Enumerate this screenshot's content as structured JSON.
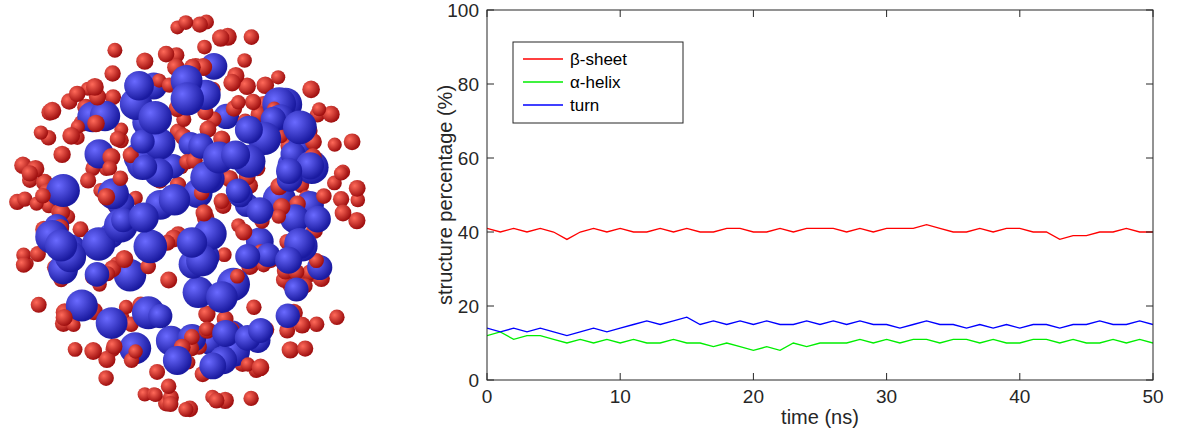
{
  "chart_data": {
    "type": "line",
    "x_label": "time (ns)",
    "y_label": "structure percentage (%)",
    "xlim": [
      0,
      50
    ],
    "xticks": [
      0,
      10,
      20,
      30,
      40,
      50
    ],
    "ylim": [
      0,
      100
    ],
    "yticks": [
      0,
      20,
      40,
      60,
      80,
      100
    ],
    "grid": false,
    "legend": "upper left",
    "x": [
      0,
      1,
      2,
      3,
      4,
      5,
      6,
      7,
      8,
      9,
      10,
      11,
      12,
      13,
      14,
      15,
      16,
      17,
      18,
      19,
      20,
      21,
      22,
      23,
      24,
      25,
      26,
      27,
      28,
      29,
      30,
      31,
      32,
      33,
      34,
      35,
      36,
      37,
      38,
      39,
      40,
      41,
      42,
      43,
      44,
      45,
      46,
      47,
      48,
      49,
      50
    ],
    "series": [
      {
        "name": "β-sheet",
        "color": "#ff0000",
        "values": [
          41,
          40,
          41,
          40,
          41,
          40,
          38,
          40,
          41,
          40,
          41,
          40,
          40,
          41,
          40,
          41,
          40,
          40,
          41,
          41,
          40,
          40,
          41,
          40,
          41,
          41,
          41,
          40,
          41,
          40,
          41,
          41,
          41,
          42,
          41,
          40,
          40,
          41,
          40,
          41,
          41,
          40,
          40,
          38,
          39,
          39,
          40,
          40,
          41,
          40,
          40
        ]
      },
      {
        "name": "α-helix",
        "color": "#00ee00",
        "values": [
          12,
          13,
          11,
          12,
          12,
          11,
          10,
          11,
          10,
          11,
          10,
          11,
          10,
          10,
          11,
          10,
          10,
          9,
          10,
          9,
          8,
          9,
          8,
          10,
          9,
          10,
          10,
          10,
          11,
          10,
          11,
          10,
          11,
          11,
          10,
          11,
          11,
          10,
          11,
          10,
          10,
          11,
          11,
          10,
          11,
          10,
          10,
          11,
          10,
          11,
          10
        ]
      },
      {
        "name": "turn",
        "color": "#0000ff",
        "values": [
          14,
          13,
          14,
          13,
          14,
          13,
          12,
          13,
          14,
          13,
          14,
          15,
          16,
          15,
          16,
          17,
          15,
          16,
          15,
          16,
          15,
          16,
          15,
          15,
          16,
          15,
          16,
          15,
          16,
          15,
          15,
          14,
          15,
          16,
          15,
          15,
          14,
          15,
          14,
          15,
          14,
          15,
          15,
          14,
          15,
          15,
          16,
          15,
          15,
          16,
          15
        ]
      }
    ]
  }
}
